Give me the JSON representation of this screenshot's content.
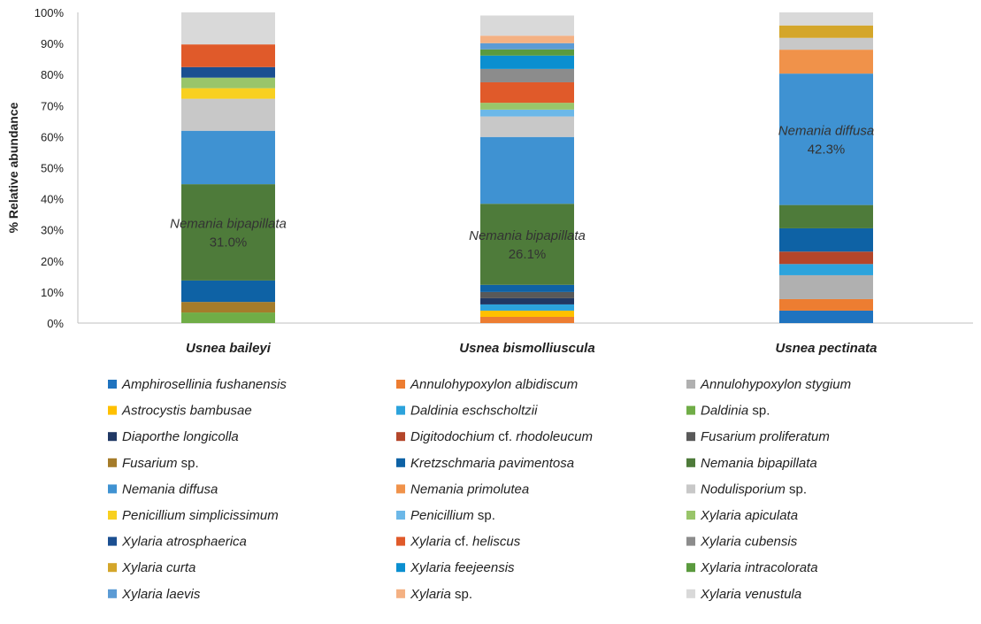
{
  "chart_data": {
    "type": "bar",
    "stacked": true,
    "ylabel": "% Relative abundance",
    "ylim": [
      0,
      100
    ],
    "yticks": [
      "0%",
      "10%",
      "20%",
      "30%",
      "40%",
      "50%",
      "60%",
      "70%",
      "80%",
      "90%",
      "100%"
    ],
    "categories": [
      "Usnea baileyi",
      "Usnea bismolliuscula",
      "Usnea pectinata"
    ],
    "annotations": [
      {
        "category": 0,
        "taxon": "Nemania bipapillata",
        "value": "31.0%"
      },
      {
        "category": 1,
        "taxon": "Nemania bipapillata",
        "value": "26.1%"
      },
      {
        "category": 2,
        "taxon": "Nemania diffusa",
        "value": "42.3%"
      }
    ],
    "legend_position": "bottom",
    "series": [
      {
        "name": "Amphirosellinia fushanensis",
        "italic": "Amphirosellinia fushanensis",
        "plain": "",
        "color": "#1f73bf",
        "values": [
          0,
          0,
          4.0
        ]
      },
      {
        "name": "Annulohypoxylon albidiscum",
        "italic": "Annulohypoxylon albidiscum",
        "plain": "",
        "color": "#ed7d31",
        "values": [
          0,
          2.0,
          3.7
        ]
      },
      {
        "name": "Annulohypoxylon stygium",
        "italic": "Annulohypoxylon stygium",
        "plain": "",
        "color": "#b0b0b0",
        "values": [
          0,
          0,
          7.7
        ]
      },
      {
        "name": "Astrocystis bambusae",
        "italic": "Astrocystis bambusae",
        "plain": "",
        "color": "#ffc000",
        "values": [
          0,
          2.0,
          0
        ]
      },
      {
        "name": "Daldinia eschscholtzii",
        "italic": "Daldinia eschscholtzii",
        "plain": "",
        "color": "#2ca3dc",
        "values": [
          0,
          2.0,
          3.6
        ]
      },
      {
        "name": "Daldinia sp.",
        "italic": "Daldinia",
        "plain": " sp.",
        "color": "#70ad47",
        "values": [
          3.4,
          0,
          0
        ]
      },
      {
        "name": "Diaporthe longicolla",
        "italic": "Diaporthe longicolla",
        "plain": "",
        "color": "#203864",
        "values": [
          0,
          2.0,
          0
        ]
      },
      {
        "name": "Digitodochium cf. rhodoleucum",
        "italic": "Digitodochium",
        "plain": " cf. ",
        "italic2": "rhodoleucum",
        "color": "#b4462a",
        "values": [
          0,
          0,
          4.0
        ]
      },
      {
        "name": "Fusarium proliferatum",
        "italic": "Fusarium proliferatum",
        "plain": "",
        "color": "#595959",
        "values": [
          0,
          2.0,
          0
        ]
      },
      {
        "name": "Fusarium sp.",
        "italic": "Fusarium",
        "plain": " sp.",
        "color": "#a57c2a",
        "values": [
          3.4,
          0,
          0
        ]
      },
      {
        "name": "Kretzschmaria pavimentosa",
        "italic": "Kretzschmaria pavimentosa",
        "plain": "",
        "color": "#0e62a5",
        "values": [
          6.9,
          2.3,
          7.5
        ]
      },
      {
        "name": "Nemania bipapillata",
        "italic": "Nemania bipapillata",
        "plain": "",
        "color": "#4e7b3a",
        "values": [
          31.0,
          26.1,
          7.5
        ]
      },
      {
        "name": "Nemania diffusa",
        "italic": "Nemania diffusa",
        "plain": "",
        "color": "#3f92d2",
        "values": [
          17.2,
          21.5,
          42.3
        ]
      },
      {
        "name": "Nemania primolutea",
        "italic": "Nemania primolutea",
        "plain": "",
        "color": "#f0924a",
        "values": [
          0,
          0,
          7.7
        ]
      },
      {
        "name": "Nodulisporium sp.",
        "italic": "Nodulisporium",
        "plain": " sp.",
        "color": "#c8c8c8",
        "values": [
          10.3,
          6.6,
          3.8
        ]
      },
      {
        "name": "Penicillium simplicissimum",
        "italic": "Penicillium simplicissimum",
        "plain": "",
        "color": "#f8d020",
        "values": [
          3.4,
          0,
          0
        ]
      },
      {
        "name": "Penicillium sp.",
        "italic": "Penicillium",
        "plain": " sp.",
        "color": "#6cb8e8",
        "values": [
          0,
          2.2,
          0
        ]
      },
      {
        "name": "Xylaria apiculata",
        "italic": "Xylaria apiculata",
        "plain": "",
        "color": "#99c56a",
        "values": [
          3.4,
          2.2,
          0
        ]
      },
      {
        "name": "Xylaria atrosphaerica",
        "italic": "Xylaria atrosphaerica",
        "plain": "",
        "color": "#1b4f91",
        "values": [
          3.4,
          0,
          0
        ]
      },
      {
        "name": "Xylaria cf. heliscus",
        "italic": "Xylaria",
        "plain": " cf. ",
        "italic2": "heliscus",
        "color": "#e05a2a",
        "values": [
          7.3,
          6.6,
          0
        ]
      },
      {
        "name": "Xylaria cubensis",
        "italic": "Xylaria cubensis",
        "plain": "",
        "color": "#8c8c8c",
        "values": [
          0,
          4.3,
          0
        ]
      },
      {
        "name": "Xylaria curta",
        "italic": "Xylaria curta",
        "plain": "",
        "color": "#d4a62a",
        "values": [
          0,
          0,
          4.0
        ]
      },
      {
        "name": "Xylaria feejeensis",
        "italic": "Xylaria feejeensis",
        "plain": "",
        "color": "#0b8fd0",
        "values": [
          0,
          4.3,
          0
        ]
      },
      {
        "name": "Xylaria intracolorata",
        "italic": "Xylaria intracolorata",
        "plain": "",
        "color": "#5a9a3e",
        "values": [
          0,
          2.0,
          0
        ]
      },
      {
        "name": "Xylaria laevis",
        "italic": "Xylaria laevis",
        "plain": "",
        "color": "#5b9bd5",
        "values": [
          0,
          2.0,
          0
        ]
      },
      {
        "name": "Xylaria sp.",
        "italic": "Xylaria",
        "plain": " sp.",
        "color": "#f4b183",
        "values": [
          0,
          2.4,
          0
        ]
      },
      {
        "name": "Xylaria venustula",
        "italic": "Xylaria venustula",
        "plain": "",
        "color": "#d9d9d9",
        "values": [
          10.3,
          6.5,
          4.2
        ]
      }
    ]
  }
}
